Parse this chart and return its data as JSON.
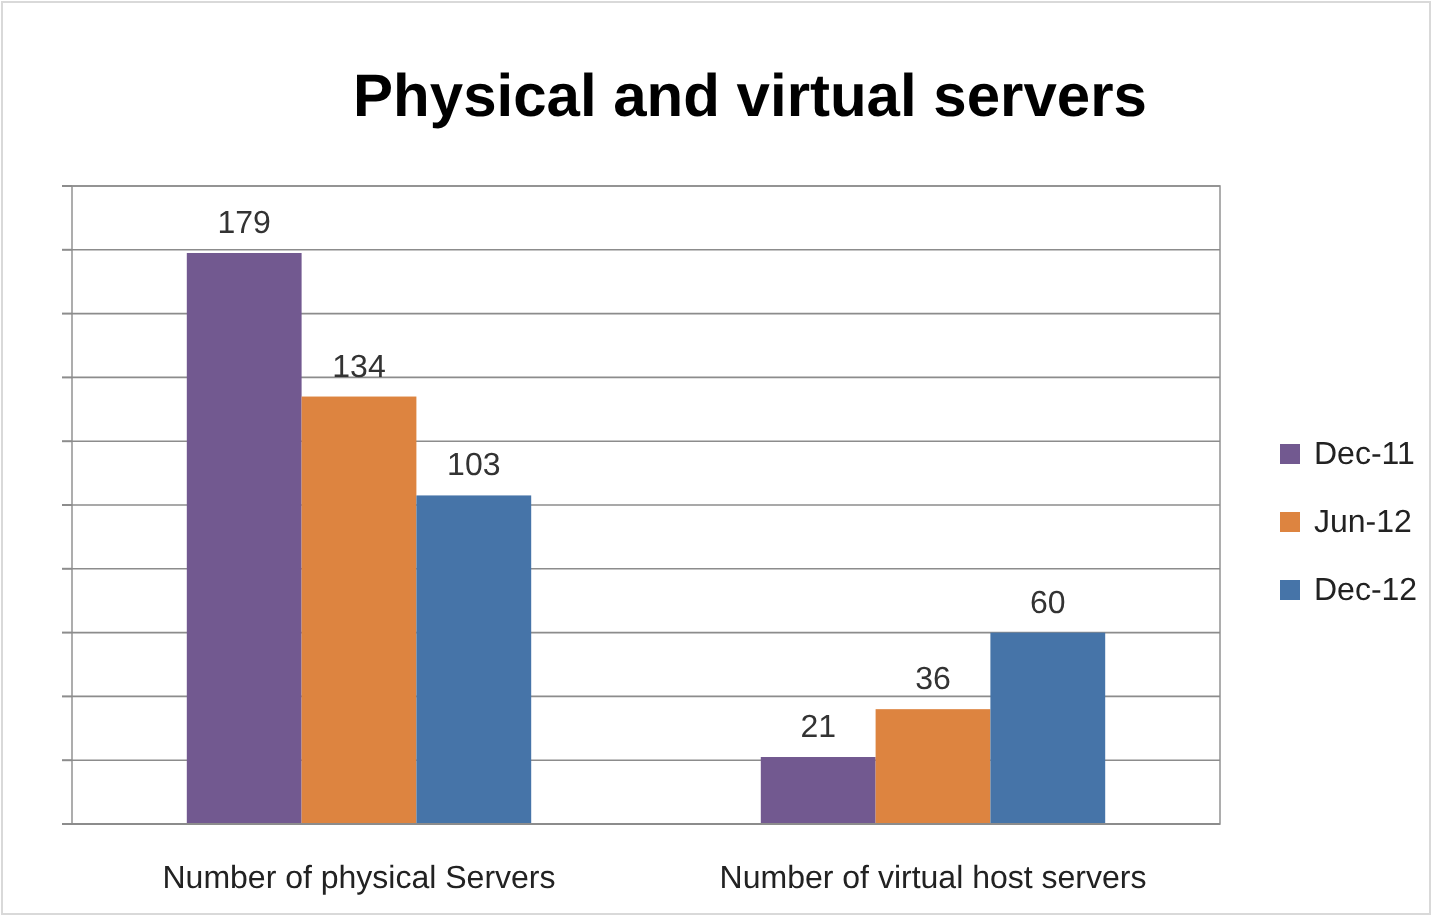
{
  "chart_data": {
    "type": "bar",
    "title": "Physical and virtual servers",
    "categories": [
      "Number of physical Servers",
      "Number of virtual host servers"
    ],
    "series": [
      {
        "name": "Dec-11",
        "color": "#725990",
        "values": [
          179,
          21
        ]
      },
      {
        "name": "Jun-12",
        "color": "#dd8440",
        "values": [
          134,
          36
        ]
      },
      {
        "name": "Dec-12",
        "color": "#4674a8",
        "values": [
          103,
          60
        ]
      }
    ],
    "ylim": [
      0,
      200
    ],
    "yticks": [
      {
        "value": 0,
        "label": null
      },
      {
        "value": 20,
        "label": null
      },
      {
        "value": 40,
        "label": null
      },
      {
        "value": 60,
        "label": null
      },
      {
        "value": 80,
        "label": null
      },
      {
        "value": 100,
        "label": null
      },
      {
        "value": 120,
        "label": null
      },
      {
        "value": 140,
        "label": null
      },
      {
        "value": 160,
        "label": null
      },
      {
        "value": 180,
        "label": null
      },
      {
        "value": 200,
        "label": null
      }
    ],
    "grid": true,
    "tick_labels": "x",
    "data_labels": true,
    "legend": "right"
  }
}
